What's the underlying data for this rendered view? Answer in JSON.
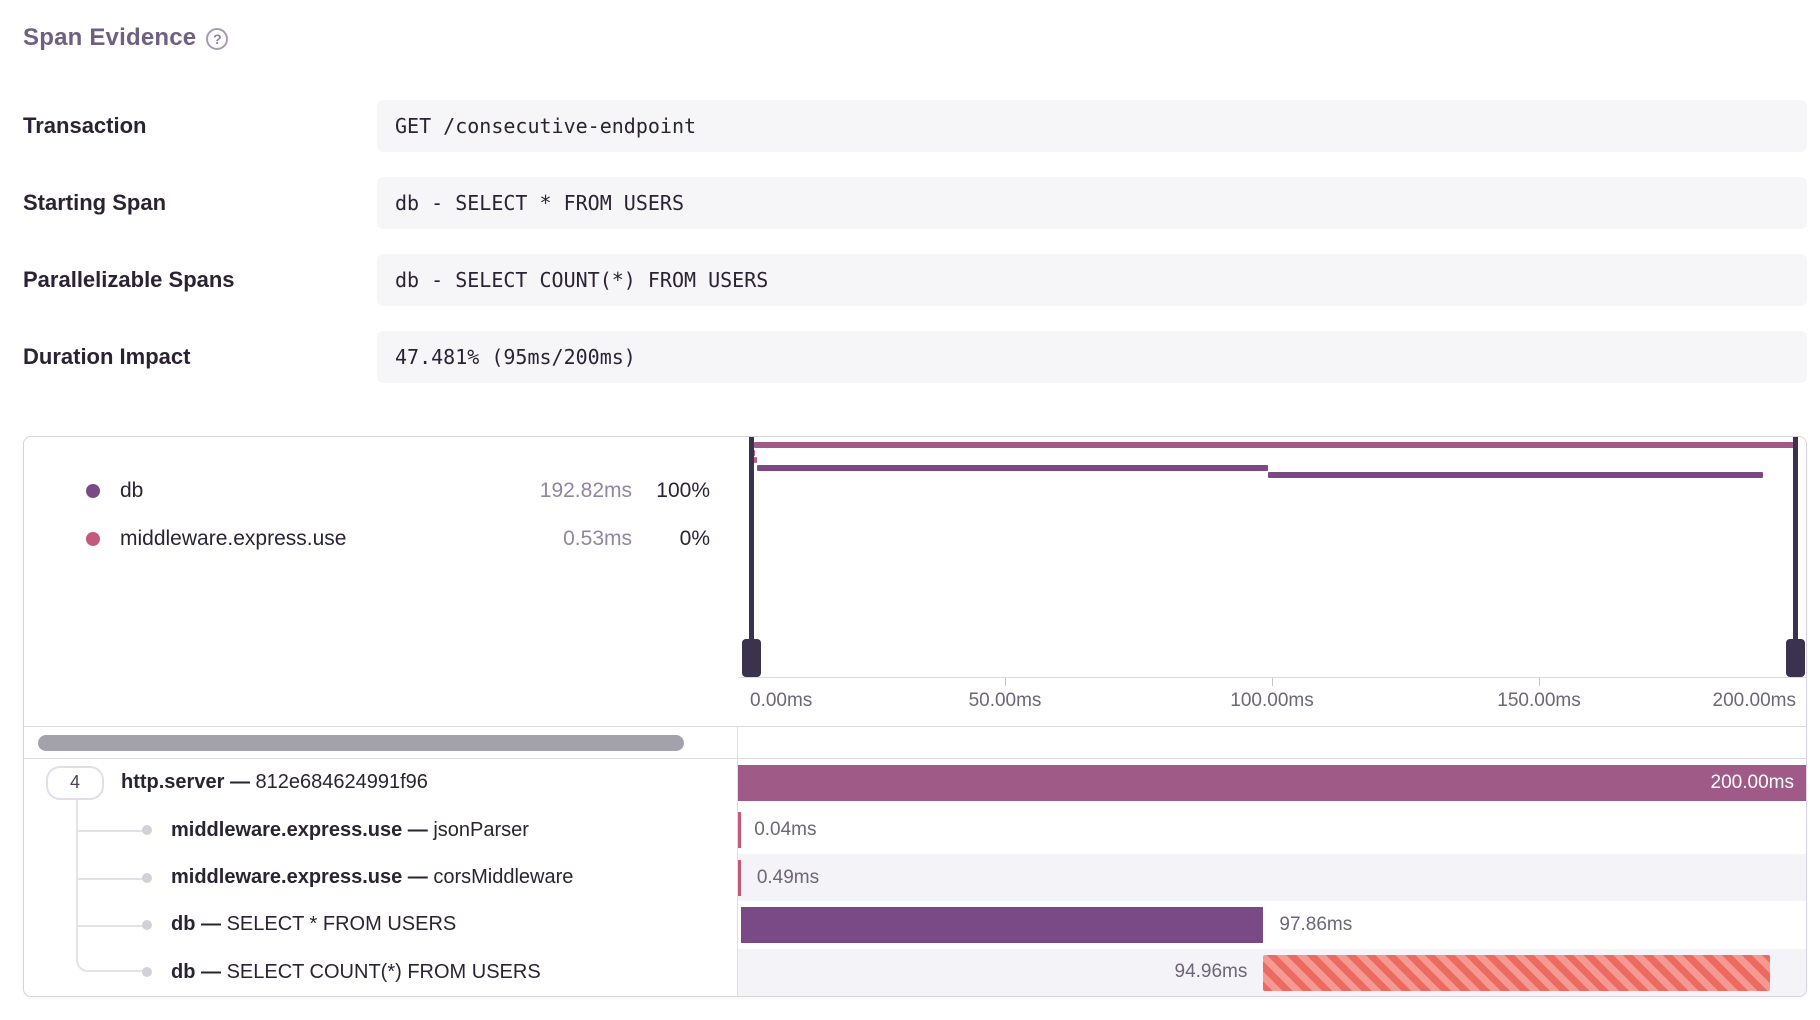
{
  "header": {
    "title": "Span Evidence",
    "help_glyph": "?"
  },
  "fields": [
    {
      "label": "Transaction",
      "value": "GET /consecutive-endpoint"
    },
    {
      "label": "Starting Span",
      "value": "db - SELECT * FROM USERS"
    },
    {
      "label": "Parallelizable Spans",
      "value": "db - SELECT COUNT(*) FROM USERS"
    },
    {
      "label": "Duration Impact",
      "value": "47.481% (95ms/200ms)"
    }
  ],
  "waterfall": {
    "separator": "—",
    "legend": [
      {
        "op": "db",
        "duration": "192.82ms",
        "percentage": "100%",
        "color_key": "db"
      },
      {
        "op": "middleware.express.use",
        "duration": "0.53ms",
        "percentage": "0%",
        "color_key": "middleware"
      }
    ],
    "axis": {
      "total_ms": 200,
      "ticks": [
        "0.00ms",
        "50.00ms",
        "100.00ms",
        "150.00ms",
        "200.00ms"
      ]
    },
    "spans": [
      {
        "count": "4",
        "op": "http.server",
        "desc": "812e684624991f96",
        "start_ms": 0,
        "duration_ms": 200,
        "duration_label": "200.00ms",
        "color_key": "http",
        "label_position": "inside",
        "striped": false
      },
      {
        "op": "middleware.express.use",
        "desc": "jsonParser",
        "start_ms": 0,
        "duration_ms": 0.04,
        "duration_label": "0.04ms",
        "color_key": "middleware",
        "label_position": "after",
        "striped": false
      },
      {
        "op": "middleware.express.use",
        "desc": "corsMiddleware",
        "start_ms": 0.04,
        "duration_ms": 0.49,
        "duration_label": "0.49ms",
        "color_key": "middleware",
        "label_position": "after",
        "striped": false
      },
      {
        "op": "db",
        "desc": "SELECT * FROM USERS",
        "start_ms": 0.53,
        "duration_ms": 97.86,
        "duration_label": "97.86ms",
        "color_key": "db",
        "label_position": "after",
        "striped": false
      },
      {
        "op": "db",
        "desc": "SELECT COUNT(*) FROM USERS",
        "start_ms": 98.39,
        "duration_ms": 94.96,
        "duration_label": "94.96ms",
        "color_key": "offender",
        "label_position": "before",
        "striped": true
      }
    ],
    "colors": {
      "http": "#a05a87",
      "db": "#7a4a86",
      "middleware": "#c45a7a",
      "offender": "#ec6a60",
      "offender_stripe": "#f49a93",
      "viewport": "#3b324e"
    }
  }
}
